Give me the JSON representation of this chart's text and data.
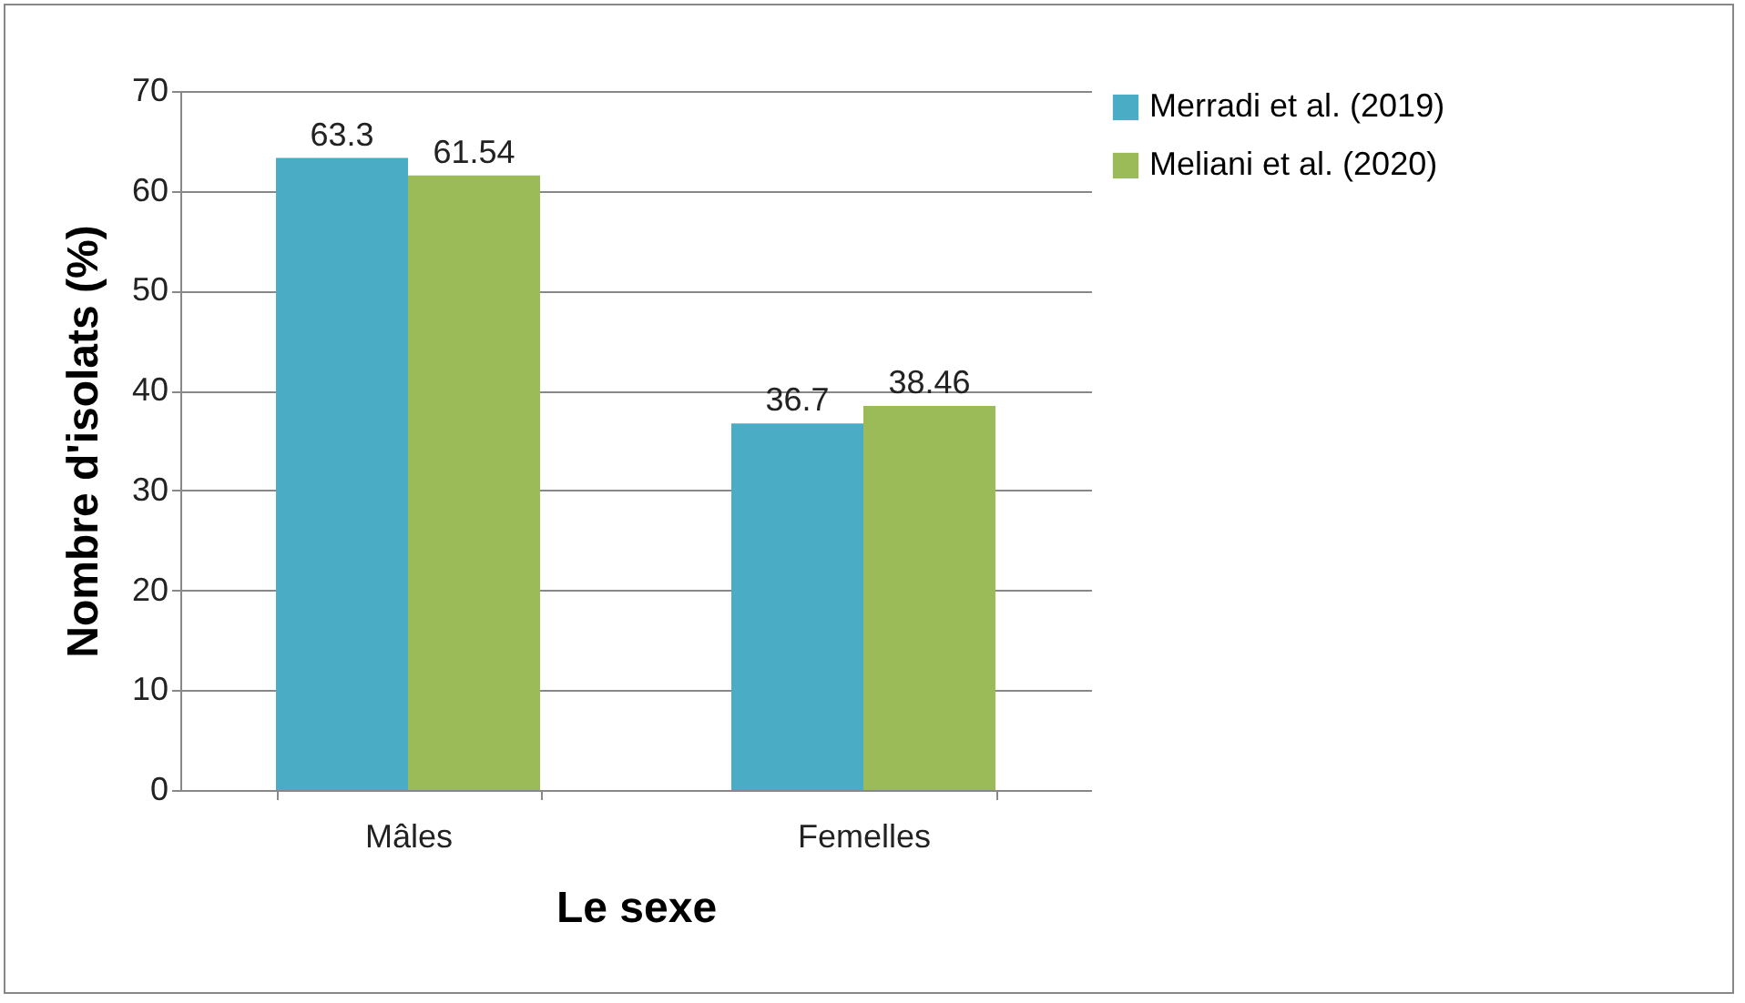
{
  "chart_data": {
    "type": "bar",
    "xlabel": "Le sexe",
    "ylabel": "Nombre d'isolats (%)",
    "categories": [
      "Mâles",
      "Femelles"
    ],
    "series": [
      {
        "name": "Merradi et al. (2019)",
        "color": "#4bacc6",
        "values": [
          63.3,
          36.7
        ]
      },
      {
        "name": "Meliani et al. (2020)",
        "color": "#9bbb59",
        "values": [
          61.54,
          38.46
        ]
      }
    ],
    "ylim": [
      0,
      70
    ],
    "yticks": [
      0,
      10,
      20,
      30,
      40,
      50,
      60,
      70
    ],
    "grid": "y",
    "legend": "right",
    "data_labels": true
  }
}
